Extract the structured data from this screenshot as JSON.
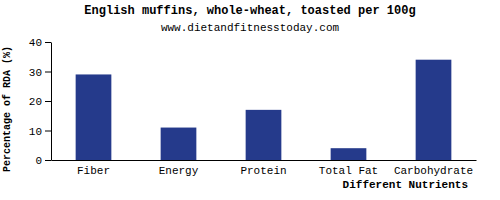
{
  "chart_data": {
    "type": "bar",
    "title": "English muffins, whole-wheat, toasted per 100g",
    "subtitle": "www.dietandfitnesstoday.com",
    "x_label": "Different Nutrients",
    "y_label": "Percentage of RDA (%)",
    "categories": [
      "Fiber",
      "Energy",
      "Protein",
      "Total Fat",
      "Carbohydrate"
    ],
    "values": [
      29,
      11,
      17,
      4,
      34
    ],
    "color": "#253a8b",
    "ylim": [
      0,
      40
    ],
    "yticks": [
      0,
      10,
      20,
      30,
      40
    ],
    "grid": false
  }
}
